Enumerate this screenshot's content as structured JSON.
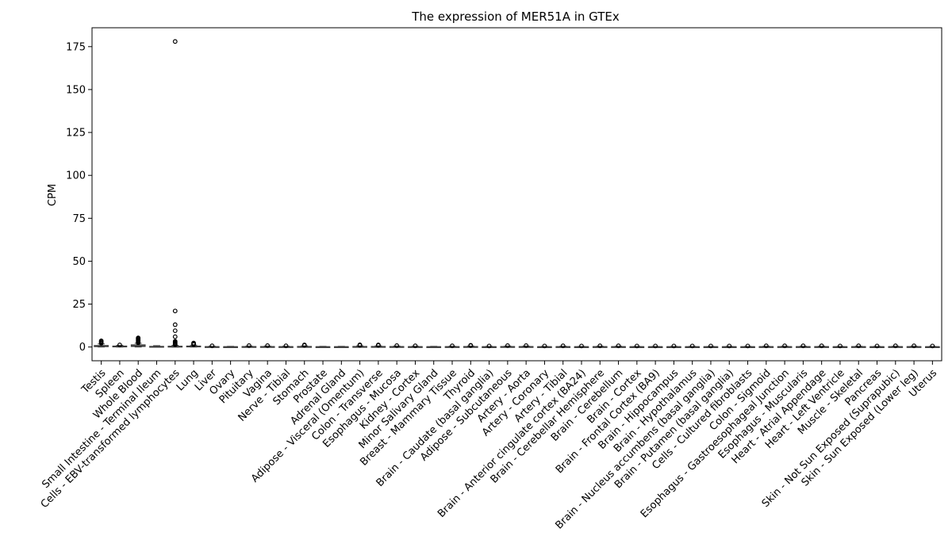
{
  "chart_data": {
    "type": "box",
    "title": "The expression of MER51A in GTEx",
    "xlabel": "",
    "ylabel": "CPM",
    "ylim": [
      -8,
      186
    ],
    "yticks": [
      0,
      25,
      50,
      75,
      100,
      125,
      150,
      175
    ],
    "grid": false,
    "categories": [
      "Testis",
      "Spleen",
      "Whole Blood",
      "Small Intestine - Terminal Ileum",
      "Cells - EBV-transformed lymphocytes",
      "Lung",
      "Liver",
      "Ovary",
      "Pituitary",
      "Vagina",
      "Nerve - Tibial",
      "Stomach",
      "Prostate",
      "Adrenal Gland",
      "Adipose - Visceral (Omentum)",
      "Colon - Transverse",
      "Esophagus - Mucosa",
      "Kidney - Cortex",
      "Minor Salivary Gland",
      "Breast - Mammary Tissue",
      "Thyroid",
      "Brain - Caudate (basal ganglia)",
      "Adipose - Subcutaneous",
      "Artery - Aorta",
      "Artery - Coronary",
      "Artery - Tibial",
      "Brain - Anterior cingulate cortex (BA24)",
      "Brain - Cerebellar Hemisphere",
      "Brain - Cerebellum",
      "Brain - Cortex",
      "Brain - Frontal Cortex (BA9)",
      "Brain - Hippocampus",
      "Brain - Hypothalamus",
      "Brain - Nucleus accumbens (basal ganglia)",
      "Brain - Putamen (basal ganglia)",
      "Cells - Cultured fibroblasts",
      "Colon - Sigmoid",
      "Esophagus - Gastroesophageal Junction",
      "Esophagus - Muscularis",
      "Heart - Atrial Appendage",
      "Heart - Left Ventricle",
      "Muscle - Skeletal",
      "Pancreas",
      "Skin - Not Sun Exposed (Suprapubic)",
      "Skin - Sun Exposed (Lower leg)",
      "Uterus"
    ],
    "boxes": [
      {
        "q1": 0.2,
        "median": 0.5,
        "q3": 0.9,
        "whisker_low": 0,
        "whisker_high": 1.8,
        "outliers": [
          2.2,
          2.6,
          3.1,
          3.6
        ]
      },
      {
        "q1": 0.1,
        "median": 0.3,
        "q3": 0.6,
        "whisker_low": 0,
        "whisker_high": 1.0,
        "outliers": [
          1.2
        ]
      },
      {
        "q1": 0.3,
        "median": 0.7,
        "q3": 1.3,
        "whisker_low": 0,
        "whisker_high": 2.2,
        "outliers": [
          2.5,
          2.9,
          3.4,
          3.9,
          4.4,
          4.9,
          5.3
        ]
      },
      {
        "q1": 0.1,
        "median": 0.2,
        "q3": 0.4,
        "whisker_low": 0,
        "whisker_high": 0.8,
        "outliers": []
      },
      {
        "q1": 0.1,
        "median": 0.2,
        "q3": 0.5,
        "whisker_low": 0,
        "whisker_high": 1.0,
        "outliers": [
          1.4,
          1.8,
          2.3,
          2.8,
          3.3,
          6.0,
          9.5,
          13.0,
          21.0,
          178.0
        ]
      },
      {
        "q1": 0.1,
        "median": 0.3,
        "q3": 0.6,
        "whisker_low": 0,
        "whisker_high": 1.1,
        "outliers": [
          1.4,
          1.9,
          2.3
        ]
      },
      {
        "q1": 0.05,
        "median": 0.1,
        "q3": 0.25,
        "whisker_low": 0,
        "whisker_high": 0.5,
        "outliers": [
          0.7
        ]
      },
      {
        "q1": 0.05,
        "median": 0.1,
        "q3": 0.2,
        "whisker_low": 0,
        "whisker_high": 0.4,
        "outliers": []
      },
      {
        "q1": 0.05,
        "median": 0.1,
        "q3": 0.3,
        "whisker_low": 0,
        "whisker_high": 0.6,
        "outliers": [
          0.8
        ]
      },
      {
        "q1": 0.05,
        "median": 0.1,
        "q3": 0.3,
        "whisker_low": 0,
        "whisker_high": 0.6,
        "outliers": [
          0.8
        ]
      },
      {
        "q1": 0.05,
        "median": 0.1,
        "q3": 0.25,
        "whisker_low": 0,
        "whisker_high": 0.5,
        "outliers": [
          0.7
        ]
      },
      {
        "q1": 0.05,
        "median": 0.15,
        "q3": 0.35,
        "whisker_low": 0,
        "whisker_high": 0.7,
        "outliers": [
          0.9,
          1.2
        ]
      },
      {
        "q1": 0.05,
        "median": 0.1,
        "q3": 0.2,
        "whisker_low": 0,
        "whisker_high": 0.4,
        "outliers": []
      },
      {
        "q1": 0.05,
        "median": 0.1,
        "q3": 0.2,
        "whisker_low": 0,
        "whisker_high": 0.4,
        "outliers": []
      },
      {
        "q1": 0.05,
        "median": 0.15,
        "q3": 0.35,
        "whisker_low": 0,
        "whisker_high": 0.7,
        "outliers": [
          0.9,
          1.3
        ]
      },
      {
        "q1": 0.05,
        "median": 0.15,
        "q3": 0.35,
        "whisker_low": 0,
        "whisker_high": 0.7,
        "outliers": [
          0.9,
          1.2
        ]
      },
      {
        "q1": 0.05,
        "median": 0.1,
        "q3": 0.3,
        "whisker_low": 0,
        "whisker_high": 0.6,
        "outliers": [
          0.8
        ]
      },
      {
        "q1": 0.05,
        "median": 0.1,
        "q3": 0.25,
        "whisker_low": 0,
        "whisker_high": 0.5,
        "outliers": [
          0.7
        ]
      },
      {
        "q1": 0.05,
        "median": 0.1,
        "q3": 0.2,
        "whisker_low": 0,
        "whisker_high": 0.4,
        "outliers": []
      },
      {
        "q1": 0.05,
        "median": 0.1,
        "q3": 0.25,
        "whisker_low": 0,
        "whisker_high": 0.5,
        "outliers": [
          0.7
        ]
      },
      {
        "q1": 0.05,
        "median": 0.1,
        "q3": 0.3,
        "whisker_low": 0,
        "whisker_high": 0.6,
        "outliers": [
          0.8,
          1.0
        ]
      },
      {
        "q1": 0.05,
        "median": 0.1,
        "q3": 0.2,
        "whisker_low": 0,
        "whisker_high": 0.4,
        "outliers": [
          0.6
        ]
      },
      {
        "q1": 0.05,
        "median": 0.1,
        "q3": 0.3,
        "whisker_low": 0,
        "whisker_high": 0.6,
        "outliers": [
          0.8
        ]
      },
      {
        "q1": 0.05,
        "median": 0.1,
        "q3": 0.3,
        "whisker_low": 0,
        "whisker_high": 0.6,
        "outliers": [
          0.8
        ]
      },
      {
        "q1": 0.05,
        "median": 0.1,
        "q3": 0.2,
        "whisker_low": 0,
        "whisker_high": 0.4,
        "outliers": [
          0.6
        ]
      },
      {
        "q1": 0.05,
        "median": 0.1,
        "q3": 0.25,
        "whisker_low": 0,
        "whisker_high": 0.5,
        "outliers": [
          0.7
        ]
      },
      {
        "q1": 0.05,
        "median": 0.1,
        "q3": 0.2,
        "whisker_low": 0,
        "whisker_high": 0.4,
        "outliers": [
          0.6
        ]
      },
      {
        "q1": 0.05,
        "median": 0.1,
        "q3": 0.25,
        "whisker_low": 0,
        "whisker_high": 0.5,
        "outliers": [
          0.7
        ]
      },
      {
        "q1": 0.05,
        "median": 0.1,
        "q3": 0.25,
        "whisker_low": 0,
        "whisker_high": 0.5,
        "outliers": [
          0.7
        ]
      },
      {
        "q1": 0.05,
        "median": 0.1,
        "q3": 0.2,
        "whisker_low": 0,
        "whisker_high": 0.4,
        "outliers": [
          0.6
        ]
      },
      {
        "q1": 0.05,
        "median": 0.1,
        "q3": 0.2,
        "whisker_low": 0,
        "whisker_high": 0.4,
        "outliers": [
          0.6
        ]
      },
      {
        "q1": 0.05,
        "median": 0.1,
        "q3": 0.2,
        "whisker_low": 0,
        "whisker_high": 0.4,
        "outliers": [
          0.6
        ]
      },
      {
        "q1": 0.05,
        "median": 0.1,
        "q3": 0.2,
        "whisker_low": 0,
        "whisker_high": 0.4,
        "outliers": [
          0.6
        ]
      },
      {
        "q1": 0.05,
        "median": 0.1,
        "q3": 0.2,
        "whisker_low": 0,
        "whisker_high": 0.4,
        "outliers": [
          0.6
        ]
      },
      {
        "q1": 0.05,
        "median": 0.1,
        "q3": 0.2,
        "whisker_low": 0,
        "whisker_high": 0.4,
        "outliers": [
          0.6
        ]
      },
      {
        "q1": 0.05,
        "median": 0.1,
        "q3": 0.2,
        "whisker_low": 0,
        "whisker_high": 0.4,
        "outliers": [
          0.6
        ]
      },
      {
        "q1": 0.05,
        "median": 0.1,
        "q3": 0.25,
        "whisker_low": 0,
        "whisker_high": 0.5,
        "outliers": [
          0.7
        ]
      },
      {
        "q1": 0.05,
        "median": 0.1,
        "q3": 0.25,
        "whisker_low": 0,
        "whisker_high": 0.5,
        "outliers": [
          0.7
        ]
      },
      {
        "q1": 0.05,
        "median": 0.1,
        "q3": 0.25,
        "whisker_low": 0,
        "whisker_high": 0.5,
        "outliers": [
          0.7
        ]
      },
      {
        "q1": 0.05,
        "median": 0.1,
        "q3": 0.25,
        "whisker_low": 0,
        "whisker_high": 0.5,
        "outliers": [
          0.7
        ]
      },
      {
        "q1": 0.05,
        "median": 0.1,
        "q3": 0.2,
        "whisker_low": 0,
        "whisker_high": 0.4,
        "outliers": [
          0.6
        ]
      },
      {
        "q1": 0.05,
        "median": 0.1,
        "q3": 0.25,
        "whisker_low": 0,
        "whisker_high": 0.5,
        "outliers": [
          0.7
        ]
      },
      {
        "q1": 0.05,
        "median": 0.1,
        "q3": 0.2,
        "whisker_low": 0,
        "whisker_high": 0.4,
        "outliers": [
          0.6
        ]
      },
      {
        "q1": 0.05,
        "median": 0.1,
        "q3": 0.25,
        "whisker_low": 0,
        "whisker_high": 0.5,
        "outliers": [
          0.7
        ]
      },
      {
        "q1": 0.05,
        "median": 0.1,
        "q3": 0.25,
        "whisker_low": 0,
        "whisker_high": 0.5,
        "outliers": [
          0.7
        ]
      },
      {
        "q1": 0.05,
        "median": 0.1,
        "q3": 0.2,
        "whisker_low": 0,
        "whisker_high": 0.4,
        "outliers": [
          0.6
        ]
      }
    ],
    "colors": {
      "box_edge": "#3b3b3b",
      "box_fill": "#ffffff",
      "outlier": "#000000",
      "axis": "#000000",
      "text": "#000000"
    }
  }
}
